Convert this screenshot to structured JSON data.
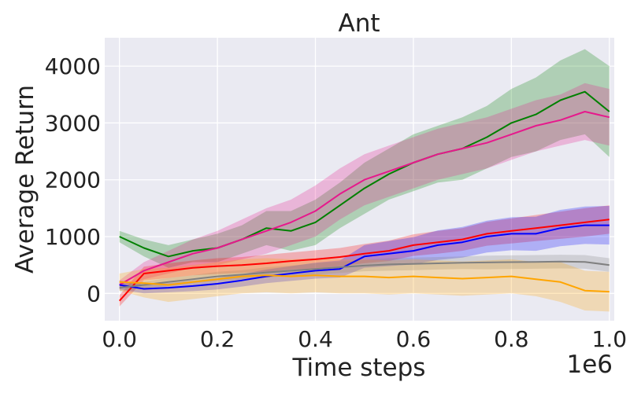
{
  "chart_data": {
    "type": "line",
    "title": "Ant",
    "xlabel": "Time steps",
    "ylabel": "Average Return",
    "x_offset_label": "1e6",
    "xlim": [
      -0.03,
      1.01
    ],
    "ylim": [
      -480,
      4500
    ],
    "xticks": [
      0.0,
      0.2,
      0.4,
      0.6,
      0.8,
      1.0
    ],
    "xtick_labels": [
      "0.0",
      "0.2",
      "0.4",
      "0.6",
      "0.8",
      "1.0"
    ],
    "yticks": [
      0,
      1000,
      2000,
      3000,
      4000
    ],
    "ytick_labels": [
      "0",
      "1000",
      "2000",
      "3000",
      "4000"
    ],
    "grid": true,
    "legend": "none",
    "background": "#eaeaf2",
    "x": [
      0.0,
      0.05,
      0.1,
      0.15,
      0.2,
      0.25,
      0.3,
      0.35,
      0.4,
      0.45,
      0.5,
      0.55,
      0.6,
      0.65,
      0.7,
      0.75,
      0.8,
      0.85,
      0.9,
      0.95,
      1.0
    ],
    "series": [
      {
        "color": "#008000",
        "values": [
          1000,
          800,
          650,
          750,
          800,
          950,
          1150,
          1100,
          1250,
          1550,
          1850,
          2100,
          2300,
          2450,
          2550,
          2750,
          3000,
          3150,
          3400,
          3550,
          3200
        ],
        "band": [
          100,
          150,
          200,
          200,
          250,
          250,
          300,
          350,
          400,
          400,
          450,
          450,
          500,
          500,
          550,
          550,
          600,
          650,
          700,
          750,
          800
        ]
      },
      {
        "color": "#e6198c",
        "values": [
          150,
          400,
          550,
          700,
          800,
          950,
          1100,
          1250,
          1450,
          1750,
          2000,
          2150,
          2300,
          2450,
          2550,
          2650,
          2800,
          2950,
          3050,
          3200,
          3100
        ],
        "band": [
          80,
          150,
          200,
          250,
          300,
          350,
          400,
          400,
          450,
          450,
          450,
          450,
          450,
          450,
          450,
          450,
          450,
          450,
          450,
          500,
          500
        ]
      },
      {
        "color": "#ff0000",
        "values": [
          -130,
          350,
          400,
          450,
          480,
          500,
          530,
          570,
          600,
          640,
          700,
          750,
          850,
          900,
          950,
          1050,
          1100,
          1150,
          1200,
          1250,
          1300
        ],
        "band": [
          100,
          120,
          130,
          130,
          140,
          140,
          150,
          150,
          160,
          160,
          170,
          180,
          190,
          200,
          200,
          210,
          220,
          230,
          240,
          250,
          250
        ]
      },
      {
        "color": "#0000ff",
        "values": [
          150,
          80,
          100,
          130,
          170,
          230,
          300,
          350,
          400,
          430,
          650,
          700,
          750,
          850,
          900,
          1000,
          1050,
          1050,
          1150,
          1200,
          1200
        ],
        "band": [
          80,
          80,
          80,
          90,
          100,
          110,
          120,
          130,
          140,
          150,
          200,
          220,
          240,
          260,
          270,
          280,
          290,
          300,
          320,
          330,
          340
        ]
      },
      {
        "color": "#808080",
        "values": [
          100,
          150,
          200,
          250,
          300,
          330,
          370,
          400,
          430,
          460,
          490,
          510,
          520,
          530,
          540,
          545,
          550,
          555,
          560,
          555,
          500
        ],
        "band": [
          60,
          60,
          70,
          70,
          80,
          80,
          90,
          90,
          100,
          100,
          100,
          110,
          110,
          110,
          110,
          120,
          120,
          120,
          120,
          120,
          120
        ]
      },
      {
        "color": "#ffa500",
        "values": [
          200,
          180,
          150,
          200,
          250,
          300,
          320,
          300,
          320,
          300,
          300,
          280,
          300,
          280,
          260,
          280,
          300,
          250,
          200,
          50,
          30
        ],
        "band": [
          150,
          250,
          300,
          300,
          300,
          300,
          300,
          300,
          300,
          300,
          300,
          300,
          300,
          300,
          300,
          300,
          300,
          300,
          350,
          350,
          350
        ]
      }
    ]
  }
}
